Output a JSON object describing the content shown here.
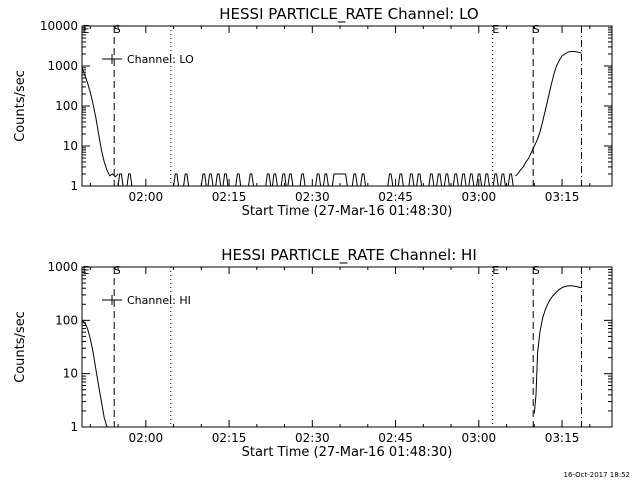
{
  "footer": {
    "timestamp": "16-Oct-2017 18:52"
  },
  "chart_data": [
    {
      "type": "line",
      "title": "HESSI PARTICLE_RATE Channel: LO",
      "xlabel": "Start Time (27-Mar-16 01:48:30)",
      "ylabel": "Counts/sec",
      "yscale": "log",
      "xlim": [
        108.5,
        204
      ],
      "ylim": [
        1,
        10000
      ],
      "xticks": [
        {
          "value": 120,
          "label": "02:00"
        },
        {
          "value": 135,
          "label": "02:15"
        },
        {
          "value": 150,
          "label": "02:30"
        },
        {
          "value": 165,
          "label": "02:45"
        },
        {
          "value": 180,
          "label": "03:00"
        },
        {
          "value": 195,
          "label": "03:15"
        }
      ],
      "yticks": [
        {
          "value": 1,
          "label": "1"
        },
        {
          "value": 10,
          "label": "10"
        },
        {
          "value": 100,
          "label": "100"
        },
        {
          "value": 1000,
          "label": "1000"
        },
        {
          "value": 10000,
          "label": "10000"
        }
      ],
      "legend": {
        "label": "Channel: LO",
        "position": "upper-left"
      },
      "vlines": [
        {
          "x": 114.3,
          "style": "dashed",
          "label": "S"
        },
        {
          "x": 124.5,
          "style": "dotted",
          "label": ""
        },
        {
          "x": 182.5,
          "style": "dotted",
          "label": "E"
        },
        {
          "x": 189.8,
          "style": "dashed",
          "label": "S"
        },
        {
          "x": 198.5,
          "style": "dashdot",
          "label": ""
        }
      ],
      "corner_label": "E",
      "series": [
        {
          "x": [
            108.5,
            109.0,
            109.5,
            110.0,
            110.5,
            111.0,
            111.5,
            112.0,
            112.5,
            113.0,
            113.5,
            114.0,
            114.5,
            115.0
          ],
          "y": [
            900,
            600,
            380,
            220,
            110,
            50,
            20,
            8,
            4,
            2.5,
            1.8,
            2,
            1.7,
            2
          ]
        },
        {
          "x": [
            115.0,
            115.3,
            115.6,
            115.9
          ],
          "y": [
            1,
            2,
            2,
            1
          ]
        },
        {
          "x": [
            116.6,
            116.9,
            117.2,
            117.5
          ],
          "y": [
            1,
            2,
            2,
            1
          ]
        },
        {
          "x": [
            125.0,
            125.3,
            125.6,
            125.9
          ],
          "y": [
            1,
            2,
            2,
            1
          ]
        },
        {
          "x": [
            126.8,
            127.1,
            127.4,
            127.7
          ],
          "y": [
            1,
            2,
            2,
            1
          ]
        },
        {
          "x": [
            130.0,
            130.3,
            130.6,
            130.9
          ],
          "y": [
            1,
            2,
            2,
            1
          ]
        },
        {
          "x": [
            131.2,
            131.5,
            131.8,
            132.1
          ],
          "y": [
            1,
            2,
            2,
            1
          ]
        },
        {
          "x": [
            132.6,
            132.9,
            133.2,
            133.5
          ],
          "y": [
            1,
            2,
            2,
            1
          ]
        },
        {
          "x": [
            133.9,
            134.2,
            134.5,
            134.8
          ],
          "y": [
            1,
            2,
            2,
            1
          ]
        },
        {
          "x": [
            136.2,
            136.5,
            136.8,
            137.1
          ],
          "y": [
            1,
            2,
            2,
            1
          ]
        },
        {
          "x": [
            138.5,
            138.8,
            139.1,
            139.4
          ],
          "y": [
            1,
            2,
            2,
            1
          ]
        },
        {
          "x": [
            141.6,
            141.9,
            142.2,
            142.5
          ],
          "y": [
            1,
            2,
            2,
            1
          ]
        },
        {
          "x": [
            142.8,
            143.1,
            143.4,
            143.7
          ],
          "y": [
            1,
            2,
            2,
            1
          ]
        },
        {
          "x": [
            144.4,
            144.7,
            145.0,
            145.3
          ],
          "y": [
            1,
            2,
            2,
            1
          ]
        },
        {
          "x": [
            145.6,
            145.9,
            146.2,
            146.5
          ],
          "y": [
            1,
            2,
            2,
            1
          ]
        },
        {
          "x": [
            147.8,
            148.1,
            148.4,
            148.7
          ],
          "y": [
            1,
            2,
            2,
            1
          ]
        },
        {
          "x": [
            150.6,
            150.9,
            151.2,
            151.5
          ],
          "y": [
            1,
            2,
            2,
            1
          ]
        },
        {
          "x": [
            152.0,
            152.3,
            152.6,
            152.9
          ],
          "y": [
            1,
            2,
            2,
            1
          ]
        },
        {
          "x": [
            153.6,
            153.9,
            156.0,
            156.3
          ],
          "y": [
            1,
            2,
            2,
            1
          ]
        },
        {
          "x": [
            157.2,
            157.5,
            157.8,
            158.1
          ],
          "y": [
            1,
            2,
            2,
            1
          ]
        },
        {
          "x": [
            158.7,
            159.0,
            159.3,
            159.6
          ],
          "y": [
            1,
            2,
            2,
            1
          ]
        },
        {
          "x": [
            163.6,
            163.9,
            164.2,
            164.5
          ],
          "y": [
            1,
            2,
            2,
            1
          ]
        },
        {
          "x": [
            165.5,
            165.8,
            166.1,
            166.4
          ],
          "y": [
            1,
            2,
            2,
            1
          ]
        },
        {
          "x": [
            167.4,
            167.7,
            168.0,
            168.3
          ],
          "y": [
            1,
            2,
            2,
            1
          ]
        },
        {
          "x": [
            168.8,
            169.1,
            169.4,
            169.7
          ],
          "y": [
            1,
            2,
            2,
            1
          ]
        },
        {
          "x": [
            171.0,
            171.3,
            171.6,
            171.9
          ],
          "y": [
            1,
            2,
            2,
            1
          ]
        },
        {
          "x": [
            172.4,
            172.7,
            173.0,
            173.3
          ],
          "y": [
            1,
            2,
            2,
            1
          ]
        },
        {
          "x": [
            173.8,
            174.1,
            174.4,
            174.7
          ],
          "y": [
            1,
            2,
            2,
            1
          ]
        },
        {
          "x": [
            175.4,
            175.7,
            176.0,
            176.3
          ],
          "y": [
            1,
            2,
            2,
            1
          ]
        },
        {
          "x": [
            176.8,
            177.1,
            177.4,
            177.7
          ],
          "y": [
            1,
            2,
            2,
            1
          ]
        },
        {
          "x": [
            178.2,
            178.5,
            178.8,
            179.1
          ],
          "y": [
            1,
            2,
            2,
            1
          ]
        },
        {
          "x": [
            179.6,
            179.9,
            180.2,
            180.5
          ],
          "y": [
            1,
            2,
            2,
            1
          ]
        },
        {
          "x": [
            181.0,
            181.3,
            181.6,
            181.9
          ],
          "y": [
            1,
            2,
            2,
            1
          ]
        },
        {
          "x": [
            182.6,
            182.9,
            183.2,
            183.5
          ],
          "y": [
            1,
            2,
            2,
            1
          ]
        },
        {
          "x": [
            183.9,
            184.2,
            184.5,
            184.8
          ],
          "y": [
            1,
            2,
            2,
            1
          ]
        },
        {
          "x": [
            185.3,
            185.6,
            185.9,
            186.2
          ],
          "y": [
            1,
            2,
            2,
            1
          ]
        },
        {
          "x": [
            186.6,
            187.0,
            187.5,
            188.0,
            188.5,
            189.0,
            189.5,
            190.0,
            190.5,
            191.0,
            191.5,
            192.0,
            192.5,
            193.0,
            193.5,
            194.0,
            194.5,
            195.0,
            195.5,
            196.0,
            196.5,
            197.0,
            197.5,
            198.0,
            198.5
          ],
          "y": [
            1.8,
            2,
            2.5,
            3,
            4,
            5,
            7,
            10,
            14,
            22,
            40,
            80,
            160,
            320,
            600,
            1000,
            1400,
            1800,
            2000,
            2200,
            2300,
            2300,
            2280,
            2200,
            2100
          ]
        }
      ]
    },
    {
      "type": "line",
      "title": "HESSI PARTICLE_RATE Channel: HI",
      "xlabel": "Start Time (27-Mar-16 01:48:30)",
      "ylabel": "Counts/sec",
      "yscale": "log",
      "xlim": [
        108.5,
        204
      ],
      "ylim": [
        1,
        1000
      ],
      "xticks": [
        {
          "value": 120,
          "label": "02:00"
        },
        {
          "value": 135,
          "label": "02:15"
        },
        {
          "value": 150,
          "label": "02:30"
        },
        {
          "value": 165,
          "label": "02:45"
        },
        {
          "value": 180,
          "label": "03:00"
        },
        {
          "value": 195,
          "label": "03:15"
        }
      ],
      "yticks": [
        {
          "value": 1,
          "label": "1"
        },
        {
          "value": 10,
          "label": "10"
        },
        {
          "value": 100,
          "label": "100"
        },
        {
          "value": 1000,
          "label": "1000"
        }
      ],
      "legend": {
        "label": "Channel: HI",
        "position": "upper-left"
      },
      "vlines": [
        {
          "x": 114.3,
          "style": "dashed",
          "label": "S"
        },
        {
          "x": 124.5,
          "style": "dotted",
          "label": ""
        },
        {
          "x": 182.5,
          "style": "dotted",
          "label": "E"
        },
        {
          "x": 189.8,
          "style": "dashed",
          "label": "S"
        },
        {
          "x": 198.5,
          "style": "dashdot",
          "label": ""
        }
      ],
      "corner_label": "E",
      "series": [
        {
          "x": [
            108.5,
            109.0,
            109.5,
            110.0,
            110.5,
            111.0,
            111.5,
            112.0,
            112.5,
            113.0
          ],
          "y": [
            100,
            90,
            70,
            45,
            25,
            12,
            6,
            3,
            1.5,
            1
          ]
        },
        {
          "x": [
            190.0,
            190.3,
            190.6,
            191.0,
            191.5,
            192.0,
            192.5,
            193.0,
            193.5,
            194.0,
            194.5,
            195.0,
            195.5,
            196.0,
            196.5,
            197.0,
            197.5,
            198.0,
            198.5
          ],
          "y": [
            1.8,
            4,
            25,
            60,
            110,
            160,
            210,
            260,
            300,
            340,
            380,
            410,
            430,
            440,
            445,
            440,
            430,
            420,
            410
          ]
        }
      ]
    }
  ]
}
